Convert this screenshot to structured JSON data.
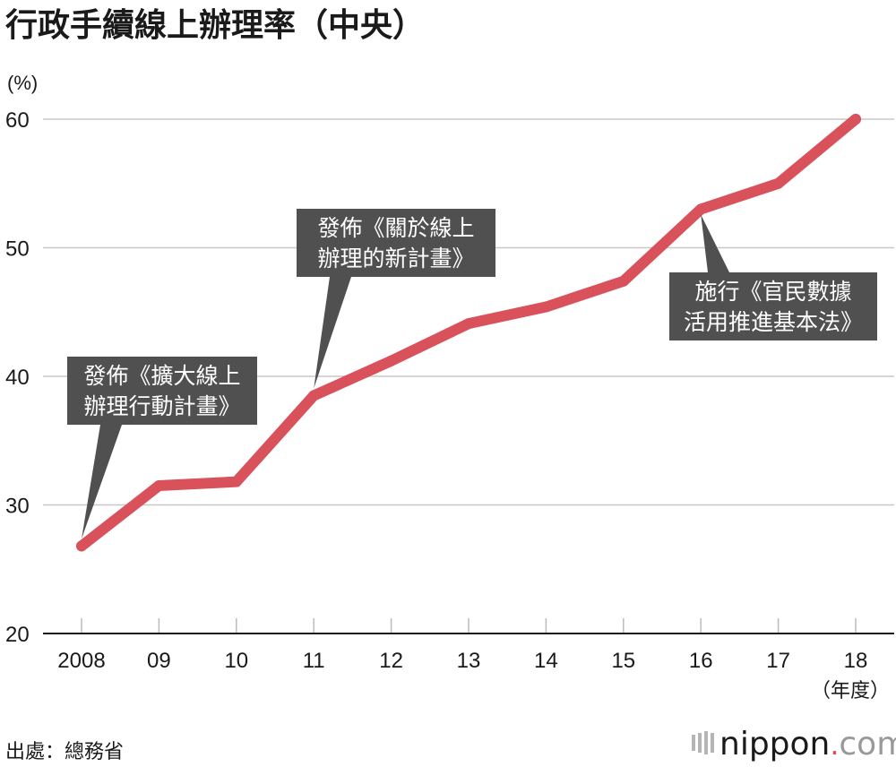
{
  "chart_data": {
    "type": "line",
    "title": "行政手續線上辦理率（中央）",
    "ylabel": "(%)",
    "xunit": "（年度）",
    "categories": [
      "2008",
      "09",
      "10",
      "11",
      "12",
      "13",
      "14",
      "15",
      "16",
      "17",
      "18"
    ],
    "yticks": [
      "20",
      "30",
      "40",
      "50",
      "60"
    ],
    "ylim": [
      20,
      60
    ],
    "grid": true,
    "series": [
      {
        "values": [
          26.8,
          31.5,
          31.8,
          38.5,
          41.2,
          44.1,
          45.4,
          47.4,
          53.0,
          55.0,
          60.0
        ],
        "color": "#d9515a"
      }
    ],
    "annotations": [
      {
        "lines": [
          "發佈《擴大線上",
          "辦理行動計畫》"
        ],
        "category": "2008"
      },
      {
        "lines": [
          "發佈《關於線上",
          "辦理的新計畫》"
        ],
        "category": "11"
      },
      {
        "lines": [
          "施行《官民數據",
          "活用推進基本法》"
        ],
        "category": "16"
      }
    ]
  },
  "source": "出處：總務省",
  "logo": {
    "text": "nippon",
    "dot": ".",
    "domain": "com"
  },
  "colors": {
    "line": "#d9515a",
    "callout": "#505050"
  }
}
